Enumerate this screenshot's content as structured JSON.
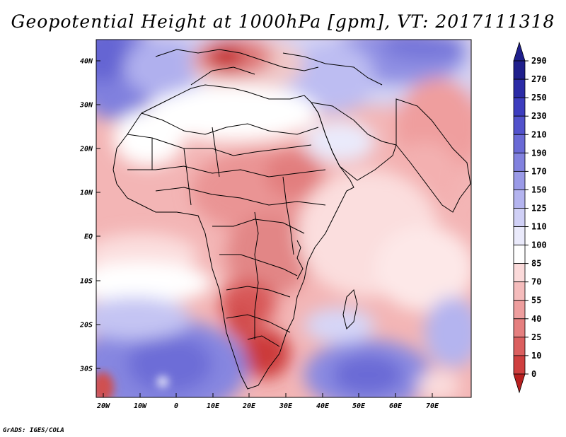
{
  "title": "Geopotential Height at 1000hPa [gpm], VT: 2017111318",
  "credit": "GrADS: IGES/COLA",
  "lat_labels": [
    "40N",
    "30N",
    "20N",
    "10N",
    "EQ",
    "10S",
    "20S",
    "30S"
  ],
  "lon_labels": [
    "20W",
    "10W",
    "0",
    "10E",
    "20E",
    "30E",
    "40E",
    "50E",
    "60E",
    "70E"
  ],
  "colorbar": {
    "levels": [
      "290",
      "270",
      "250",
      "230",
      "210",
      "190",
      "170",
      "150",
      "125",
      "110",
      "100",
      "85",
      "70",
      "55",
      "40",
      "25",
      "10",
      "0"
    ],
    "colors": [
      "#1f1f8c",
      "#2b2ba6",
      "#3d3dbf",
      "#5252cc",
      "#6a6ad6",
      "#8282df",
      "#9a9ae7",
      "#b4b4ef",
      "#d0d0f6",
      "#eaeafb",
      "#ffffff",
      "#fbdada",
      "#f5bcbc",
      "#ee9e9e",
      "#e57f7f",
      "#db5f5f",
      "#cf3f3f",
      "#b81f1f"
    ]
  },
  "map": {
    "region": "Africa, Arabian Peninsula and western Indian Ocean",
    "lat_range": [
      -36,
      45
    ],
    "lon_range": [
      -22,
      80
    ]
  }
}
